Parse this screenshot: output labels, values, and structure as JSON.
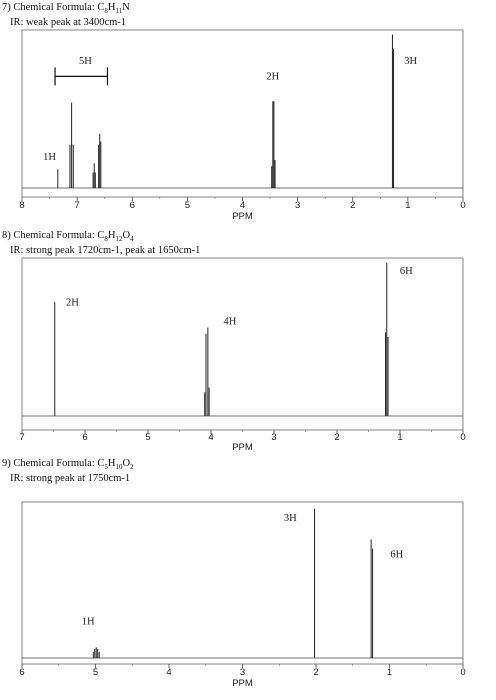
{
  "chart_data": [
    {
      "type": "line",
      "problem_number": "7)",
      "formula_prefix": "Chemical Formula: C",
      "formula_parts": [
        [
          "C",
          "8"
        ],
        [
          "H",
          "11"
        ],
        [
          "N",
          ""
        ]
      ],
      "formula_text": "Chemical Formula: C8H11N",
      "ir": "IR: weak peak at 3400cm-1",
      "xlabel": "PPM",
      "xlim": [
        8,
        0
      ],
      "xticks": [
        "8",
        "7",
        "6",
        "5",
        "4",
        "3",
        "2",
        "1",
        "0"
      ],
      "peaks": [
        {
          "ppm": 7.35,
          "height": 0.12
        },
        {
          "ppm": 7.13,
          "height": 0.28
        },
        {
          "ppm": 7.1,
          "height": 0.55
        },
        {
          "ppm": 7.07,
          "height": 0.28
        },
        {
          "ppm": 6.71,
          "height": 0.1
        },
        {
          "ppm": 6.69,
          "height": 0.16
        },
        {
          "ppm": 6.67,
          "height": 0.1
        },
        {
          "ppm": 6.61,
          "height": 0.28
        },
        {
          "ppm": 6.59,
          "height": 0.35
        },
        {
          "ppm": 6.57,
          "height": 0.3
        },
        {
          "ppm": 3.47,
          "height": 0.14
        },
        {
          "ppm": 3.45,
          "height": 0.56
        },
        {
          "ppm": 3.43,
          "height": 0.56
        },
        {
          "ppm": 3.41,
          "height": 0.18
        },
        {
          "ppm": 1.28,
          "height": 0.99
        },
        {
          "ppm": 1.26,
          "height": 0.9
        }
      ],
      "integrations": [
        {
          "label": "1H",
          "ppm": 7.5,
          "height": 0.18
        },
        {
          "label": "5H",
          "ppm": 6.85,
          "height": 0.8
        },
        {
          "label": "2H",
          "ppm": 3.45,
          "height": 0.7
        },
        {
          "label": "3H",
          "ppm": 0.95,
          "height": 0.8
        }
      ],
      "bracket": {
        "from_ppm": 7.4,
        "to_ppm": 6.45,
        "height": 0.72
      }
    },
    {
      "type": "line",
      "problem_number": "8)",
      "formula_prefix": "Chemical Formula: C",
      "formula_parts": [
        [
          "C",
          "8"
        ],
        [
          "H",
          "12"
        ],
        [
          "O",
          "4"
        ]
      ],
      "formula_text": "Chemical Formula: C8H12O4",
      "ir": "IR: strong peak 1720cm-1, peak at 1650cm-1",
      "xlabel": "PPM",
      "xlim": [
        7,
        0
      ],
      "xticks": [
        "7",
        "6",
        "5",
        "4",
        "3",
        "2",
        "1",
        "0"
      ],
      "peaks": [
        {
          "ppm": 6.48,
          "height": 0.72
        },
        {
          "ppm": 4.1,
          "height": 0.15
        },
        {
          "ppm": 4.08,
          "height": 0.52
        },
        {
          "ppm": 4.05,
          "height": 0.56
        },
        {
          "ppm": 4.03,
          "height": 0.18
        },
        {
          "ppm": 1.23,
          "height": 0.53
        },
        {
          "ppm": 1.21,
          "height": 0.97
        },
        {
          "ppm": 1.19,
          "height": 0.5
        }
      ],
      "integrations": [
        {
          "label": "2H",
          "ppm": 6.2,
          "height": 0.7
        },
        {
          "label": "4H",
          "ppm": 3.7,
          "height": 0.58
        },
        {
          "label": "6H",
          "ppm": 0.9,
          "height": 0.9
        }
      ]
    },
    {
      "type": "line",
      "problem_number": "9)",
      "formula_prefix": "Chemical Formula: C",
      "formula_parts": [
        [
          "C",
          "5"
        ],
        [
          "H",
          "10"
        ],
        [
          "O",
          "2"
        ]
      ],
      "formula_text": "Chemical Formula: C5H10O2",
      "ir": "IR: strong peak at 1750cm-1",
      "xlabel": "PPM",
      "xlim": [
        6,
        0
      ],
      "xticks": [
        "6",
        "5",
        "4",
        "3",
        "2",
        "1",
        "0"
      ],
      "peaks": [
        {
          "ppm": 5.03,
          "height": 0.04
        },
        {
          "ppm": 5.01,
          "height": 0.06
        },
        {
          "ppm": 4.99,
          "height": 0.07
        },
        {
          "ppm": 4.97,
          "height": 0.06
        },
        {
          "ppm": 4.95,
          "height": 0.04
        },
        {
          "ppm": 2.02,
          "height": 0.98
        },
        {
          "ppm": 1.25,
          "height": 0.78
        },
        {
          "ppm": 1.23,
          "height": 0.72
        }
      ],
      "integrations": [
        {
          "label": "1H",
          "ppm": 5.1,
          "height": 0.22
        },
        {
          "label": "3H",
          "ppm": 2.35,
          "height": 0.9
        },
        {
          "label": "6H",
          "ppm": 0.9,
          "height": 0.66
        }
      ]
    }
  ]
}
